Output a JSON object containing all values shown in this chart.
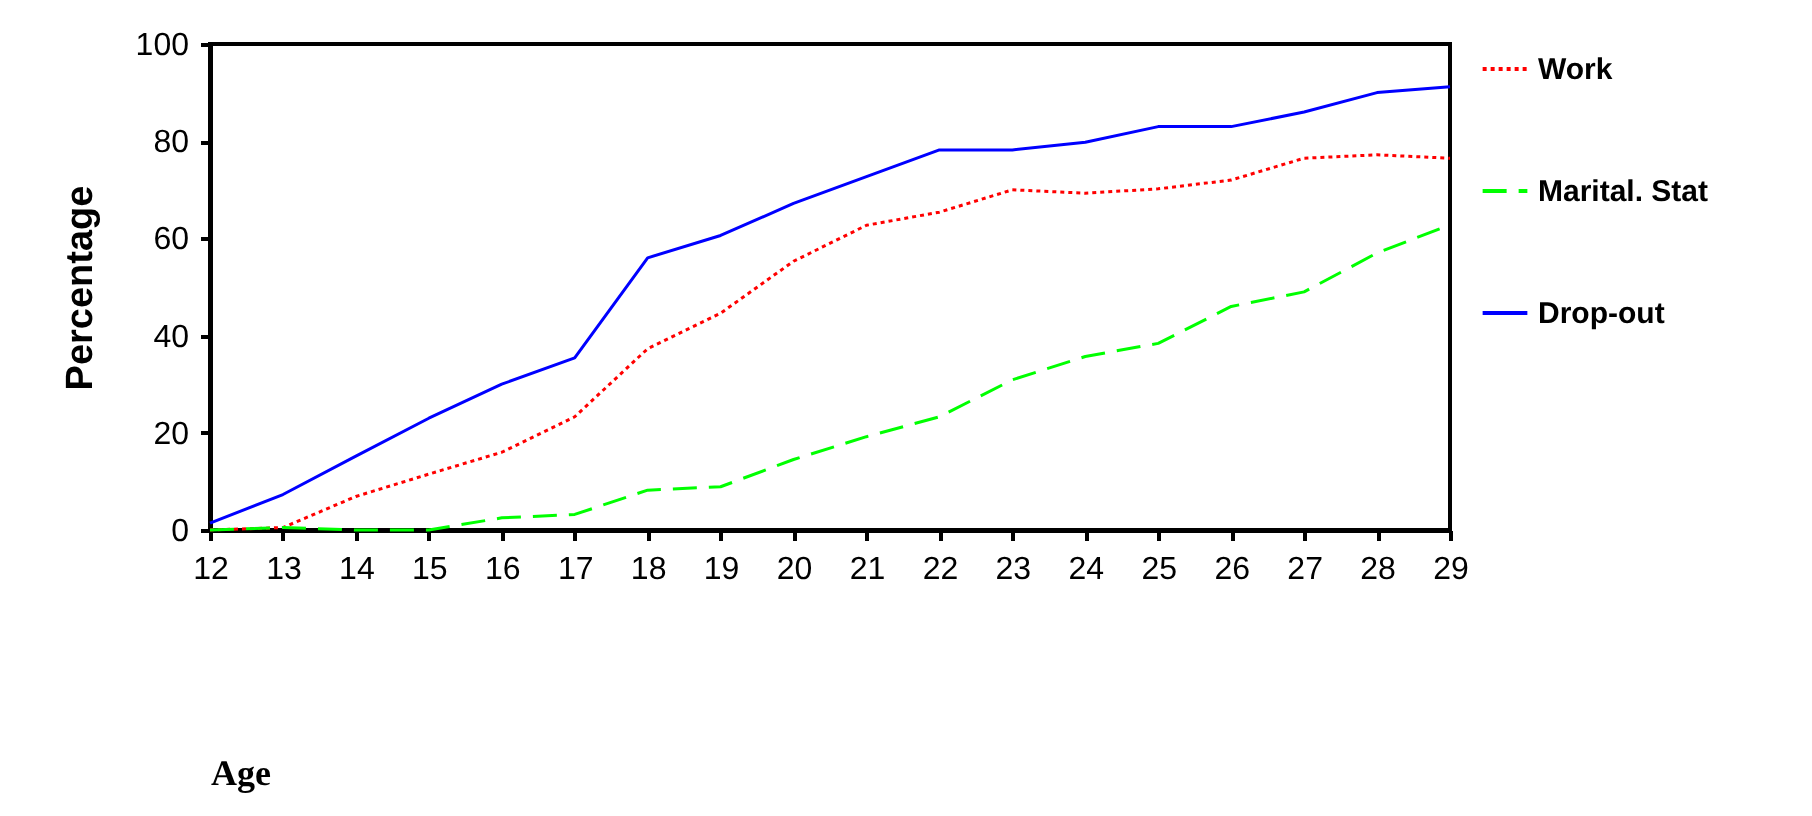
{
  "chart_data": {
    "type": "line",
    "xlabel": "Age",
    "ylabel": "Percentage",
    "x": [
      12,
      13,
      14,
      15,
      16,
      17,
      18,
      19,
      20,
      21,
      22,
      23,
      24,
      25,
      26,
      27,
      28,
      29
    ],
    "xlim": [
      12,
      29
    ],
    "xticks": [
      12,
      13,
      14,
      15,
      16,
      17,
      18,
      19,
      20,
      21,
      22,
      23,
      24,
      25,
      26,
      27,
      28,
      29
    ],
    "ylim": [
      0,
      100
    ],
    "yticks": [
      0,
      20,
      40,
      60,
      80,
      100
    ],
    "grid": false,
    "legend": "right",
    "series": [
      {
        "name": "Work",
        "color": "#ff0000",
        "line_style": "dotted",
        "values": [
          0,
          0.5,
          6.9,
          11.5,
          16,
          23.3,
          37.3,
          44.6,
          55.3,
          62.7,
          65.4,
          70,
          69.3,
          70.2,
          72,
          76.5,
          77.2,
          76.5
        ]
      },
      {
        "name": "Marital. Stat",
        "color": "#00ff00",
        "line_style": "dashed",
        "values": [
          0,
          0.5,
          0,
          0,
          2.5,
          3.2,
          8.2,
          8.9,
          14.5,
          19.2,
          23.3,
          30.9,
          35.7,
          38.4,
          46,
          49,
          57,
          62.8
        ]
      },
      {
        "name": "Drop-out",
        "color": "#0000ff",
        "line_style": "solid",
        "values": [
          1.4,
          7.3,
          15.2,
          23,
          30,
          35.4,
          56,
          60.6,
          67.2,
          72.7,
          78.2,
          78.2,
          79.8,
          83,
          83,
          86,
          90,
          91.2
        ]
      }
    ]
  }
}
